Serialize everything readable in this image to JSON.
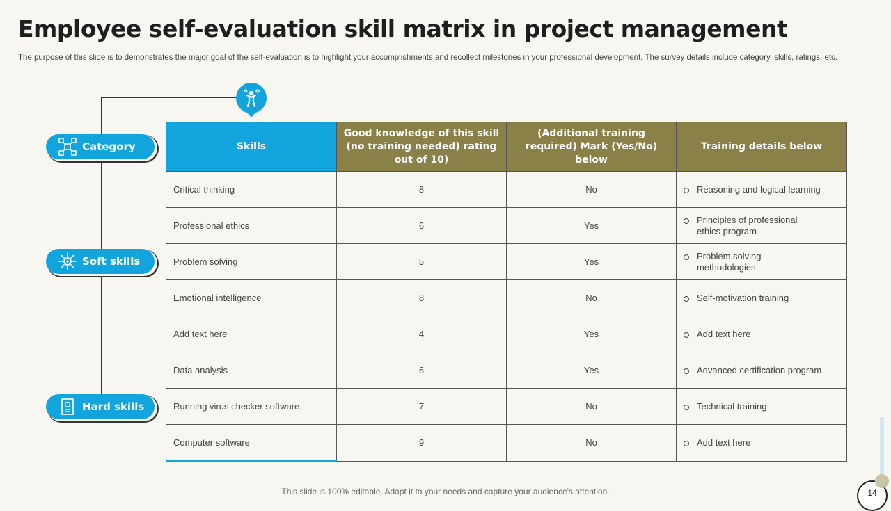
{
  "title": "Employee self-evaluation skill matrix in project management",
  "subtitle": "The purpose of this slide is to demonstrates the major goal of the self-evaluation is to highlight your accomplishments and recollect milestones in your professional development. The survey details include category, skills, ratings, etc.",
  "categories": [
    {
      "label": "Category",
      "icon": "network-icon"
    },
    {
      "label": "Soft skills",
      "icon": "sun-gear-icon"
    },
    {
      "label": "Hard skills",
      "icon": "certificate-icon"
    }
  ],
  "table": {
    "headers": [
      "Skills",
      "Good knowledge of this skill (no training needed) rating out of 10)",
      "(Additional training required) Mark (Yes/No) below",
      "Training details below"
    ],
    "rows": [
      {
        "skill": "Critical thinking",
        "rating": "8",
        "training_required": "No",
        "details": "Reasoning and logical learning"
      },
      {
        "skill": "Professional ethics",
        "rating": "6",
        "training_required": "Yes",
        "details": "Principles of professional ethics program"
      },
      {
        "skill": "Problem solving",
        "rating": "5",
        "training_required": "Yes",
        "details": "Problem solving methodologies"
      },
      {
        "skill": "Emotional intelligence",
        "rating": "8",
        "training_required": "No",
        "details": "Self-motivation training"
      },
      {
        "skill": "Add text here",
        "rating": "4",
        "training_required": "Yes",
        "details": "Add text here"
      },
      {
        "skill": "Data analysis",
        "rating": "6",
        "training_required": "Yes",
        "details": "Advanced certification program"
      },
      {
        "skill": "Running virus checker software",
        "rating": "7",
        "training_required": "No",
        "details": "Technical training"
      },
      {
        "skill": "Computer software",
        "rating": "9",
        "training_required": "No",
        "details": "Add text here"
      }
    ]
  },
  "footer": "This slide is 100% editable. Adapt it to your needs and capture your audience's attention.",
  "page_number": "14",
  "colors": {
    "accent_blue": "#12a4dc",
    "olive": "#8a8148",
    "background": "#f7f6f1"
  }
}
